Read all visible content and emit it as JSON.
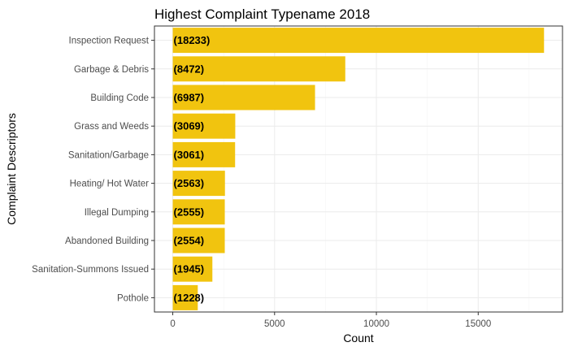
{
  "chart_data": {
    "type": "bar",
    "orientation": "horizontal",
    "title": "Highest Complaint Typename 2018",
    "xlabel": "Count",
    "ylabel": "Complaint Descriptors",
    "categories": [
      "Inspection Request",
      "Garbage & Debris",
      "Building Code",
      "Grass and Weeds",
      "Sanitation/Garbage",
      "Heating/ Hot Water",
      "Illegal Dumping",
      "Abandoned Building",
      "Sanitation-Summons Issued",
      "Pothole"
    ],
    "values": [
      18233,
      8472,
      6987,
      3069,
      3061,
      2563,
      2555,
      2554,
      1945,
      1228
    ],
    "data_labels": [
      "(18233)",
      "(8472)",
      "(6987)",
      "(3069)",
      "(3061)",
      "(2563)",
      "(2555)",
      "(2554)",
      "(1945)",
      "(1228)"
    ],
    "x_ticks": [
      0,
      5000,
      10000,
      15000
    ],
    "x_tick_labels": [
      "0",
      "5000",
      "10000",
      "15000"
    ],
    "xlim": [
      -900,
      19140
    ],
    "grid": true,
    "legend": "none",
    "colors": {
      "bar": "#F1C40F",
      "panel_border": "#333333",
      "grid_major": "#EBEBEB",
      "grid_minor": "#F5F5F5"
    }
  }
}
